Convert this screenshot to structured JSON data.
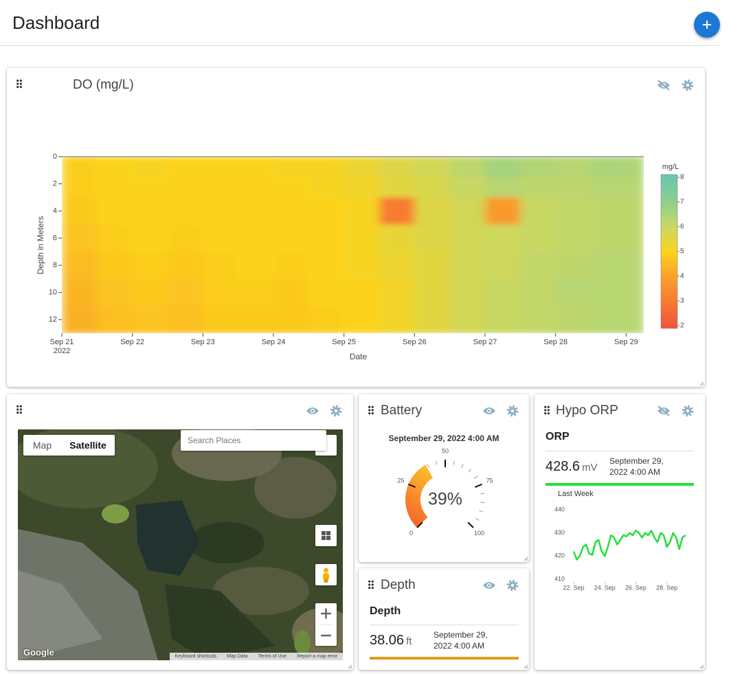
{
  "header": {
    "title": "Dashboard"
  },
  "chart_data": [
    {
      "type": "heatmap",
      "title": "DO (mg/L)",
      "x_label": "Date",
      "y_label": "Depth in Meters",
      "x_bins": [
        21,
        21.5,
        22,
        22.5,
        23,
        23.5,
        24,
        24.5,
        25,
        25.5,
        26,
        26.5,
        27,
        27.5,
        28,
        28.5,
        29,
        29.25
      ],
      "xlim": [
        21,
        29.25
      ],
      "xticks": [
        {
          "value": 21,
          "label": "Sep 21"
        },
        {
          "value": 22,
          "label": "Sep 22"
        },
        {
          "value": 23,
          "label": "Sep 23"
        },
        {
          "value": 24,
          "label": "Sep 24"
        },
        {
          "value": 25,
          "label": "Sep 25"
        },
        {
          "value": 26,
          "label": "Sep 26"
        },
        {
          "value": 27,
          "label": "Sep 27"
        },
        {
          "value": 28,
          "label": "Sep 28"
        },
        {
          "value": 29,
          "label": "Sep 29"
        }
      ],
      "x_tick_year": "2022",
      "y_bins": [
        0,
        1.5,
        3,
        5,
        7,
        9,
        11,
        13
      ],
      "ylim": [
        0,
        13
      ],
      "yticks": [
        0,
        2,
        4,
        6,
        8,
        10,
        12
      ],
      "z": [
        [
          4.9,
          5.0,
          5.1,
          5.0,
          5.0,
          5.0,
          5.1,
          5.1,
          5.3,
          5.6,
          5.8,
          6.2,
          6.6,
          6.4,
          6.3,
          6.5,
          6.4
        ],
        [
          4.9,
          5.0,
          5.0,
          5.0,
          5.0,
          5.0,
          5.0,
          5.1,
          5.2,
          5.5,
          5.7,
          6.0,
          6.3,
          6.2,
          6.2,
          6.3,
          6.3
        ],
        [
          4.8,
          5.0,
          5.0,
          5.0,
          5.0,
          5.0,
          5.0,
          5.0,
          5.1,
          3.0,
          5.6,
          5.8,
          3.8,
          6.0,
          6.1,
          6.2,
          6.2
        ],
        [
          4.7,
          4.9,
          5.0,
          4.9,
          5.0,
          5.0,
          5.0,
          5.0,
          5.1,
          5.4,
          5.6,
          5.8,
          5.9,
          6.0,
          6.1,
          6.2,
          6.2
        ],
        [
          4.5,
          4.8,
          4.9,
          4.8,
          4.9,
          5.0,
          4.9,
          5.0,
          5.1,
          5.3,
          5.5,
          5.8,
          5.9,
          6.1,
          6.2,
          6.3,
          6.3
        ],
        [
          4.4,
          4.7,
          4.8,
          4.7,
          4.9,
          4.9,
          4.8,
          5.0,
          5.0,
          5.2,
          5.5,
          5.8,
          6.0,
          6.1,
          6.3,
          6.3,
          6.3
        ],
        [
          4.3,
          4.6,
          4.7,
          4.6,
          4.8,
          4.8,
          4.8,
          4.9,
          5.0,
          5.2,
          5.5,
          5.8,
          6.0,
          6.1,
          6.2,
          6.3,
          6.3
        ]
      ],
      "colorbar": {
        "title": "mg/L",
        "zlim": [
          2,
          8
        ],
        "ticks": [
          2,
          3,
          4,
          5,
          6,
          7,
          8
        ]
      },
      "colorscale": [
        {
          "value": 2,
          "color": "#f4553b"
        },
        {
          "value": 4,
          "color": "#f9a22a"
        },
        {
          "value": 5,
          "color": "#fcd31c"
        },
        {
          "value": 6,
          "color": "#c8d864"
        },
        {
          "value": 7,
          "color": "#8fcf8e"
        },
        {
          "value": 8,
          "color": "#6ac7ad"
        }
      ]
    },
    {
      "type": "gauge",
      "title": "Battery",
      "subtitle": "September 29, 2022 4:00 AM",
      "value": 39,
      "value_label": "39%",
      "lim": [
        0,
        100
      ],
      "ticks": [
        0,
        25,
        50,
        75,
        100
      ],
      "colors": [
        "#f25a2c",
        "#fdb52a"
      ]
    },
    {
      "type": "line",
      "title": "Hypo ORP",
      "heading": "ORP",
      "current_value": 428.6,
      "unit": "mV",
      "timestamp": "September 29, 2022 4:00 AM",
      "caption": "Last Week",
      "color": "#22e03a",
      "x": [
        22,
        22.2,
        22.4,
        22.6,
        22.8,
        23,
        23.2,
        23.4,
        23.6,
        23.8,
        24,
        24.2,
        24.4,
        24.6,
        24.8,
        25,
        25.2,
        25.4,
        25.6,
        25.8,
        26,
        26.2,
        26.4,
        26.6,
        26.8,
        27,
        27.2,
        27.4,
        27.6,
        27.8,
        28,
        28.2,
        28.4,
        28.6,
        28.8,
        29,
        29.2
      ],
      "values": [
        422,
        418.5,
        420,
        424,
        425,
        421,
        420.5,
        426,
        427,
        422,
        420,
        424,
        429,
        428,
        425,
        427,
        429,
        428.5,
        430,
        429,
        431,
        430,
        428,
        430,
        429,
        431,
        428,
        426,
        430,
        429,
        424,
        426,
        430,
        428,
        423,
        428,
        429
      ],
      "xlim": [
        21.6,
        29.3
      ],
      "xticks": [
        {
          "value": 22,
          "label": "22. Sep"
        },
        {
          "value": 24,
          "label": "24. Sep"
        },
        {
          "value": 26,
          "label": "26. Sep"
        },
        {
          "value": 28,
          "label": "28. Sep"
        }
      ],
      "ylim": [
        410,
        440
      ],
      "yticks": [
        410,
        420,
        430,
        440
      ]
    }
  ],
  "widgets": {
    "map": {
      "tabs": [
        "Map",
        "Satellite"
      ],
      "search_placeholder": "Search Places",
      "logo": "Google",
      "footer": [
        "Keyboard shortcuts",
        "Map Data",
        "Terms of Use",
        "Report a map error"
      ]
    },
    "depth": {
      "title": "Depth",
      "heading": "Depth",
      "value": 38.06,
      "unit": "ft",
      "timestamp": "September 29, 2022 4:00 AM",
      "color": "#e09a1c"
    }
  }
}
